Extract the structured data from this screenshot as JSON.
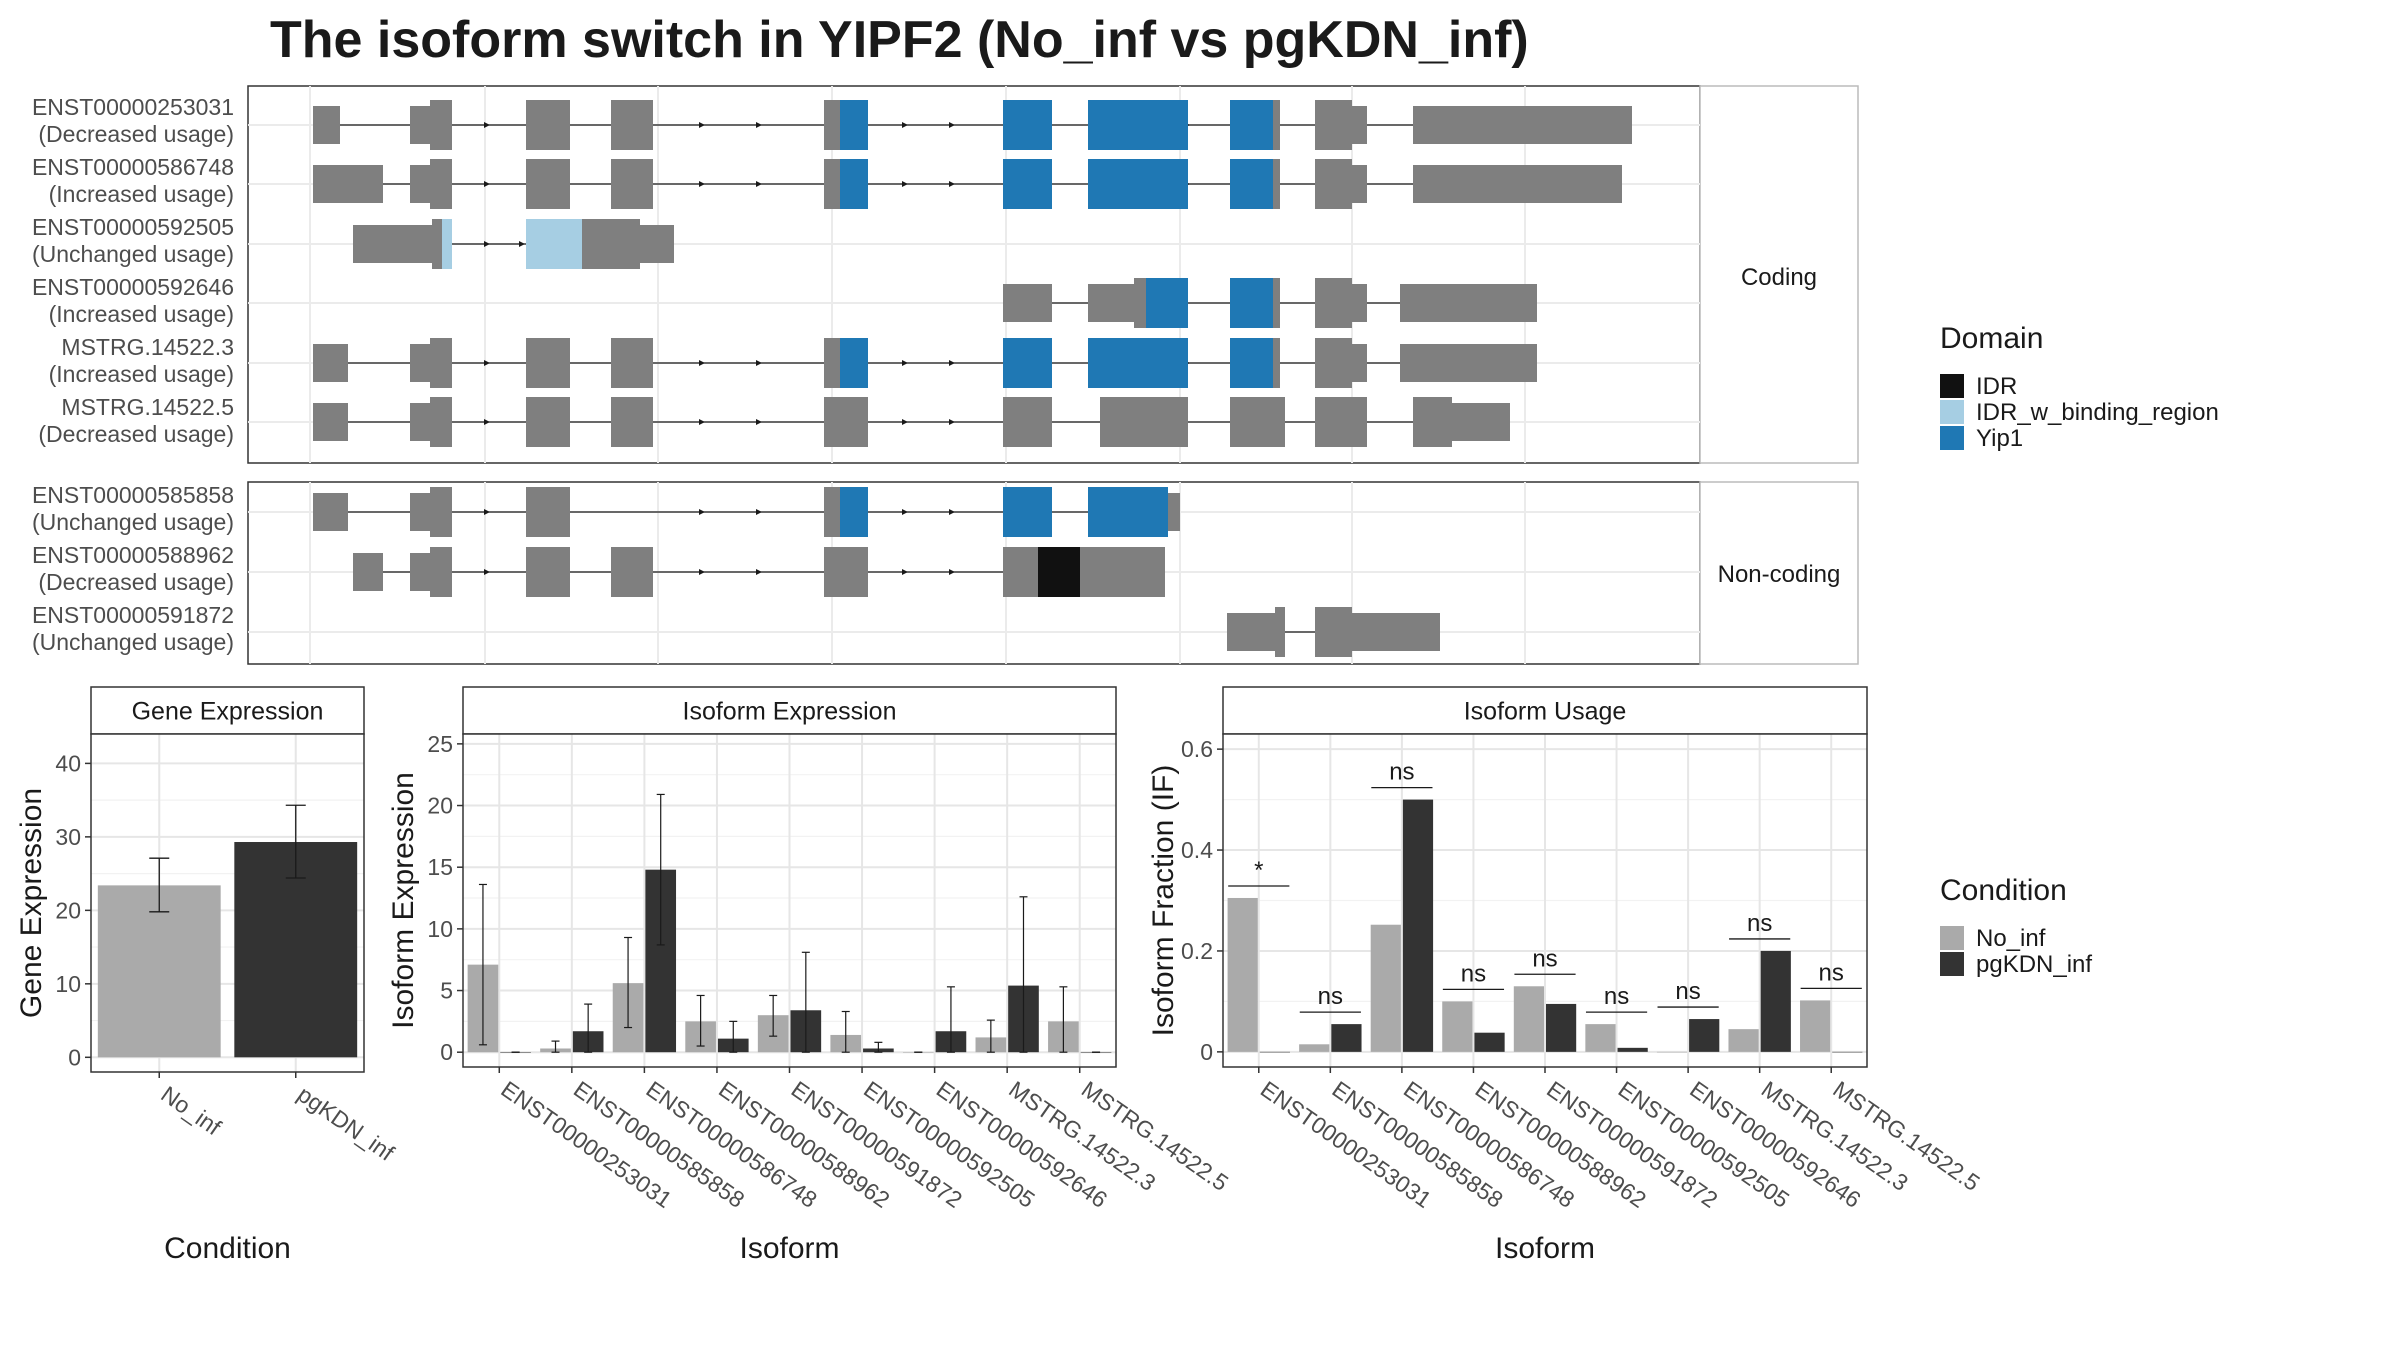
{
  "title": "The isoform switch in YIPF2 (No_inf vs pgKDN_inf)",
  "colors": {
    "idr": "#111111",
    "idr_binding": "#a6cee3",
    "yip1": "#1f78b4",
    "exon": "#7f7f7f",
    "no_inf": "#aaaaaa",
    "pgkdn_inf": "#333333"
  },
  "structure_panel": {
    "coding_label": "Coding",
    "noncoding_label": "Non-coding",
    "coding": [
      {
        "id": "ENST00000253031",
        "usage": "(Decreased usage)"
      },
      {
        "id": "ENST00000586748",
        "usage": "(Increased usage)"
      },
      {
        "id": "ENST00000592505",
        "usage": "(Unchanged usage)"
      },
      {
        "id": "ENST00000592646",
        "usage": "(Increased usage)"
      },
      {
        "id": "MSTRG.14522.3",
        "usage": "(Increased usage)"
      },
      {
        "id": "MSTRG.14522.5",
        "usage": "(Decreased usage)"
      }
    ],
    "noncoding": [
      {
        "id": "ENST00000585858",
        "usage": "(Unchanged usage)"
      },
      {
        "id": "ENST00000588962",
        "usage": "(Decreased usage)"
      },
      {
        "id": "ENST00000591872",
        "usage": "(Unchanged usage)"
      }
    ]
  },
  "legend_domain": {
    "title": "Domain",
    "items": [
      {
        "label": "IDR",
        "color": "#111111"
      },
      {
        "label": "IDR_w_binding_region",
        "color": "#a6cee3"
      },
      {
        "label": "Yip1",
        "color": "#1f78b4"
      }
    ]
  },
  "legend_condition": {
    "title": "Condition",
    "items": [
      {
        "label": "No_inf",
        "color": "#aaaaaa"
      },
      {
        "label": "pgKDN_inf",
        "color": "#333333"
      }
    ]
  },
  "chart_data": [
    {
      "type": "bar",
      "title": "Gene Expression",
      "xlabel": "Condition",
      "ylabel": "Gene Expression",
      "ylim": [
        -2,
        44
      ],
      "yticks": [
        0,
        10,
        20,
        30,
        40
      ],
      "categories": [
        "No_inf",
        "pgKDN_inf"
      ],
      "values": [
        23.4,
        29.3
      ],
      "error_low": [
        19.8,
        24.4
      ],
      "error_high": [
        27.1,
        34.3
      ]
    },
    {
      "type": "bar",
      "title": "Isoform Expression",
      "xlabel": "Isoform",
      "ylabel": "Isoform Expression",
      "ylim": [
        -1.2,
        25.8
      ],
      "yticks": [
        0,
        5,
        10,
        15,
        20,
        25
      ],
      "categories": [
        "ENST00000253031",
        "ENST00000585858",
        "ENST00000586748",
        "ENST00000588962",
        "ENST00000591872",
        "ENST00000592505",
        "ENST00000592646",
        "MSTRG.14522.3",
        "MSTRG.14522.5"
      ],
      "series": [
        {
          "name": "No_inf",
          "values": [
            7.1,
            0.3,
            5.6,
            2.5,
            3.0,
            1.4,
            0.0,
            1.2,
            2.5
          ],
          "error_low": [
            0.6,
            0.0,
            2.0,
            0.5,
            1.3,
            0.0,
            0.0,
            0.0,
            0.0
          ],
          "error_high": [
            13.6,
            0.9,
            9.3,
            4.6,
            4.6,
            3.3,
            0.0,
            2.6,
            5.3
          ]
        },
        {
          "name": "pgKDN_inf",
          "values": [
            0.0,
            1.7,
            14.8,
            1.1,
            3.4,
            0.3,
            1.7,
            5.4,
            0.0
          ],
          "error_low": [
            0.0,
            0.0,
            8.7,
            0.0,
            0.0,
            0.0,
            0.0,
            0.0,
            0.0
          ],
          "error_high": [
            0.0,
            3.9,
            20.9,
            2.5,
            8.1,
            0.8,
            5.3,
            12.6,
            0.0
          ]
        }
      ]
    },
    {
      "type": "bar",
      "title": "Isoform Usage",
      "xlabel": "Isoform",
      "ylabel": "Isoform Fraction (IF)",
      "ylim": [
        -0.03,
        0.63
      ],
      "yticks": [
        0.0,
        0.2,
        0.4,
        0.6
      ],
      "categories": [
        "ENST00000253031",
        "ENST00000585858",
        "ENST00000586748",
        "ENST00000588962",
        "ENST00000591872",
        "ENST00000592505",
        "ENST00000592646",
        "MSTRG.14522.3",
        "MSTRG.14522.5"
      ],
      "series": [
        {
          "name": "No_inf",
          "values": [
            0.305,
            0.015,
            0.252,
            0.1,
            0.13,
            0.055,
            0.0,
            0.045,
            0.102
          ]
        },
        {
          "name": "pgKDN_inf",
          "values": [
            0.0,
            0.055,
            0.5,
            0.038,
            0.095,
            0.008,
            0.065,
            0.2,
            0.0
          ]
        }
      ],
      "significance": [
        "*",
        "ns",
        "ns",
        "ns",
        "ns",
        "ns",
        "ns",
        "ns",
        "ns"
      ]
    }
  ]
}
